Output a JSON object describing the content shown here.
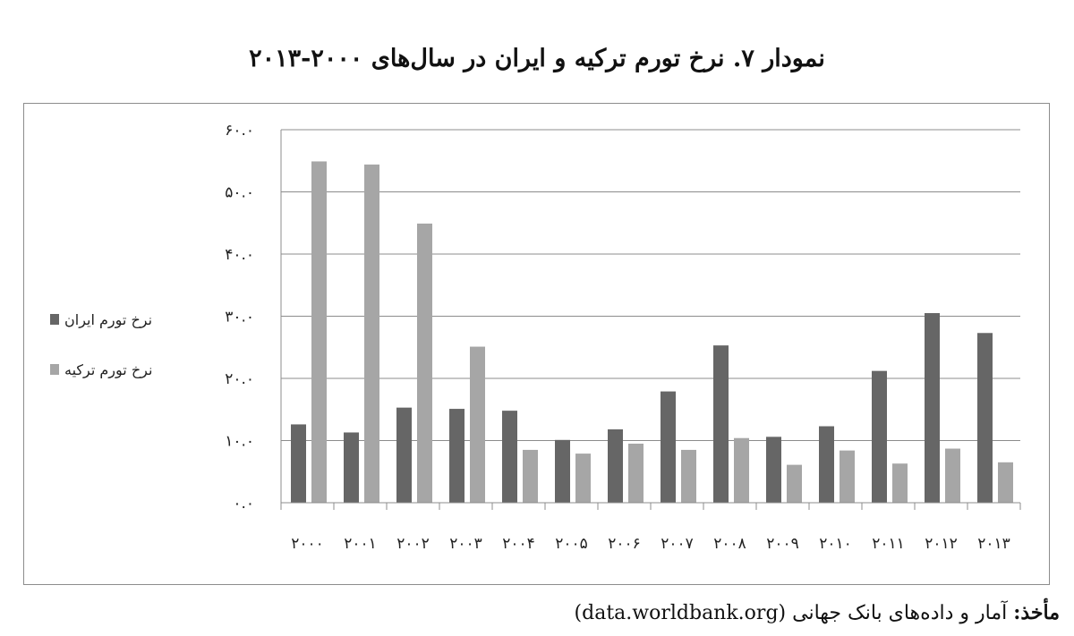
{
  "colors": {
    "iran": "#666666",
    "turkey": "#a6a6a6",
    "grid": "#8c8c8c"
  },
  "source": {
    "label": "مأخذ:",
    "text": "آمار و داده‌های بانک جهانی (data.worldbank.org)"
  },
  "chart_data": {
    "type": "bar",
    "title": "نمودار ۷. نرخ تورم ترکیه و ایران در سال‌های ۲۰۰۰-۲۰۱۳",
    "categories": [
      "۲۰۰۰",
      "۲۰۰۱",
      "۲۰۰۲",
      "۲۰۰۳",
      "۲۰۰۴",
      "۲۰۰۵",
      "۲۰۰۶",
      "۲۰۰۷",
      "۲۰۰۸",
      "۲۰۰۹",
      "۲۰۱۰",
      "۲۰۱۱",
      "۲۰۱۲",
      "۲۰۱۳"
    ],
    "series": [
      {
        "name": "نرخ تورم ایران",
        "values": [
          12.6,
          11.3,
          15.3,
          15.1,
          14.8,
          10.1,
          11.8,
          17.9,
          25.3,
          10.6,
          12.3,
          21.2,
          30.5,
          27.3
        ]
      },
      {
        "name": "نرخ تورم ترکیه",
        "values": [
          54.9,
          54.4,
          44.9,
          25.1,
          8.5,
          7.9,
          9.5,
          8.5,
          10.4,
          6.1,
          8.4,
          6.3,
          8.7,
          6.5
        ]
      }
    ],
    "yticks": [
      0,
      10,
      20,
      30,
      40,
      50,
      60
    ],
    "ytick_labels": [
      "۰.۰",
      "۱۰.۰",
      "۲۰.۰",
      "۳۰.۰",
      "۴۰.۰",
      "۵۰.۰",
      "۶۰.۰"
    ],
    "ylim": [
      0,
      60
    ],
    "xlabel": "",
    "ylabel": "",
    "grid": true,
    "legend_position": "left"
  }
}
